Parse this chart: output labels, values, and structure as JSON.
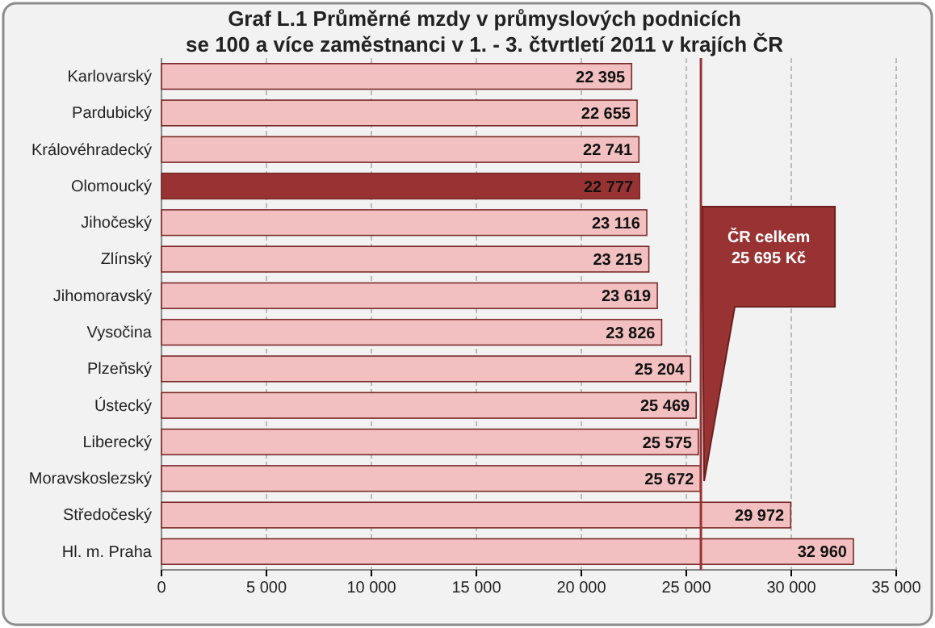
{
  "chart_data": {
    "type": "bar",
    "orientation": "horizontal",
    "title": "Graf L.1 Průměrné mzdy v průmyslových podnicích\nse 100 a více zaměstnanci  v 1. - 3. čtvrtletí 2011 v krajích ČR",
    "categories": [
      "Karlovarský",
      "Pardubický",
      "Královéhradecký",
      "Olomoucký",
      "Jihočeský",
      "Zlínský",
      "Jihomoravský",
      "Vysočina",
      "Plzeňský",
      "Ústecký",
      "Liberecký",
      "Moravskoslezský",
      "Středočeský",
      "Hl. m. Praha"
    ],
    "values": [
      22395,
      22655,
      22741,
      22777,
      23116,
      23215,
      23619,
      23826,
      25204,
      25469,
      25575,
      25672,
      29972,
      32960
    ],
    "value_labels": [
      "22 395",
      "22 655",
      "22 741",
      "22 777",
      "23 116",
      "23 215",
      "23 619",
      "23 826",
      "25 204",
      "25 469",
      "25 575",
      "25 672",
      "29 972",
      "32 960"
    ],
    "colors": [
      "#f2c0c0",
      "#f2c0c0",
      "#f2c0c0",
      "#993333",
      "#f2c0c0",
      "#f2c0c0",
      "#f2c0c0",
      "#f2c0c0",
      "#f2c0c0",
      "#f2c0c0",
      "#f2c0c0",
      "#f2c0c0",
      "#f2c0c0",
      "#f2c0c0"
    ],
    "xlim": [
      0,
      35000
    ],
    "xticks": [
      0,
      {
        "value": 5000,
        "label": "5 000"
      },
      {
        "value": 10000,
        "label": "10 000"
      },
      {
        "value": 15000,
        "label": "15 000"
      },
      {
        "value": 20000,
        "label": "20 000"
      },
      {
        "value": 25000,
        "label": "25 000"
      },
      {
        "value": 30000,
        "label": "30 000"
      },
      {
        "value": 35000,
        "label": "35 000"
      }
    ],
    "grid": "x",
    "ref_lines": [
      {
        "axis": "x",
        "value": 25695,
        "label": "ČR celkem\n25 695 Kč",
        "color": "#993333"
      }
    ]
  }
}
